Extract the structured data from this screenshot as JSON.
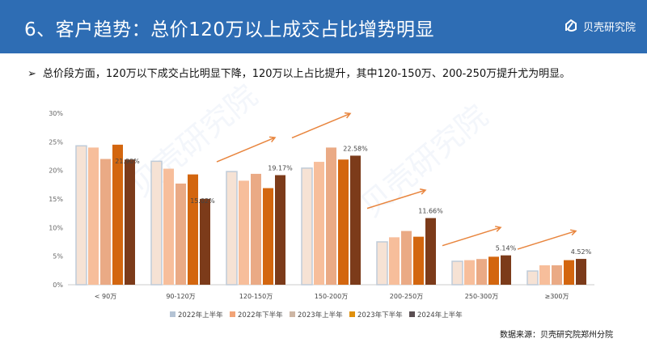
{
  "header": {
    "title": "6、客户趋势：总价120万以上成交占比增势明显",
    "logo_text": "贝壳研究院"
  },
  "bullet": {
    "icon": "arrow-bullet-icon",
    "glyph": "➢",
    "text": "总价段方面，120万以下成交占比明显下降，120万以上占比提升，其中120-150万、200-250万提升尤为明显。"
  },
  "source": "数据来源：贝壳研究院郑州分院",
  "chart_data": {
    "type": "bar",
    "title": "",
    "xlabel": "",
    "ylabel": "",
    "ylim": [
      0,
      30
    ],
    "yticks": [
      "0%",
      "5%",
      "10%",
      "15%",
      "20%",
      "25%",
      "30%"
    ],
    "categories": [
      "< 90万",
      "90-120万",
      "120-150万",
      "150-200万",
      "200-250万",
      "250-300万",
      "≥300万"
    ],
    "series": [
      {
        "name": "2022年上半年",
        "color": "#F6E2D4",
        "legend_color": "#B4C3D4",
        "values": [
          24.3,
          21.6,
          19.8,
          20.4,
          7.5,
          4.1,
          2.4
        ]
      },
      {
        "name": "2022年下半年",
        "color": "#F7BE9B",
        "legend_color": "#F2A477",
        "values": [
          24.0,
          20.3,
          18.2,
          21.5,
          8.3,
          4.3,
          3.4
        ]
      },
      {
        "name": "2023年上半年",
        "color": "#EAAA85",
        "legend_color": "#CDB6A4",
        "values": [
          22.0,
          17.7,
          19.4,
          24.0,
          9.4,
          4.5,
          3.4
        ]
      },
      {
        "name": "2023年下半年",
        "color": "#D3660F",
        "legend_color": "#E0900C",
        "values": [
          24.5,
          19.3,
          16.9,
          21.9,
          8.4,
          4.9,
          4.3
        ]
      },
      {
        "name": "2024年上半年",
        "color": "#7C3B1A",
        "legend_color": "#5A4E52",
        "values": [
          21.9,
          15.02,
          19.17,
          22.58,
          11.66,
          5.14,
          4.52
        ]
      }
    ],
    "data_labels": [
      "21.90%",
      "15.02%",
      "19.17%",
      "22.58%",
      "11.66%",
      "5.14%",
      "4.52%"
    ],
    "trend_arrows_on": [
      "120-150万",
      "150-200万",
      "200-250万",
      "250-300万",
      "≥300万"
    ],
    "legend_position": "bottom",
    "grid": false,
    "watermark": "贝壳研究院"
  }
}
